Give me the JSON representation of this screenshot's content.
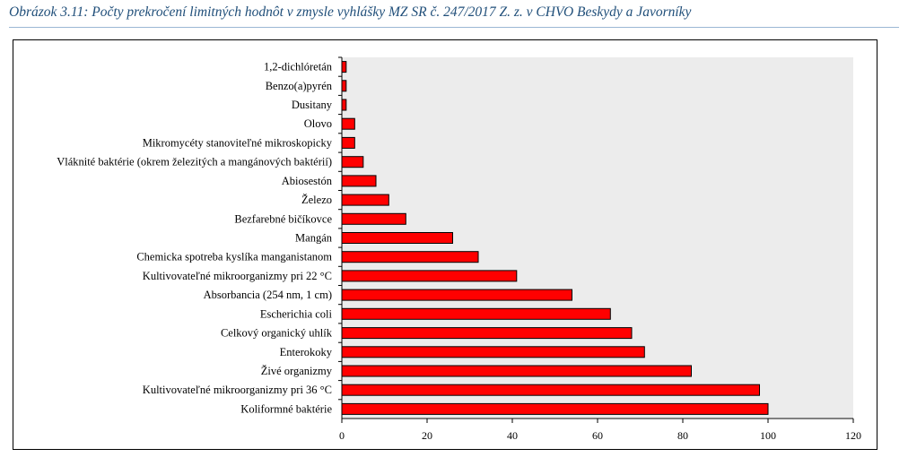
{
  "caption": "Obrázok 3.11: Počty prekročení limitných hodnôt v zmysle vyhlášky MZ SR č. 247/2017 Z. z. v CHVO Beskydy a Javorníky",
  "chart_data": {
    "type": "bar",
    "orientation": "horizontal",
    "categories": [
      "1,2-dichlóretán",
      "Benzo(a)pyrén",
      "Dusitany",
      "Olovo",
      "Mikromycéty stanoviteľné mikroskopicky",
      "Vláknité baktérie (okrem železitých a mangánových baktérií)",
      "Abiosestón",
      "Železo",
      "Bezfarebné bičíkovce",
      "Mangán",
      "Chemicka spotreba kyslíka manganistanom",
      "Kultivovateľné mikroorganizmy pri 22 °C",
      "Absorbancia (254 nm, 1 cm)",
      "Escherichia coli",
      "Celkový organický uhlík",
      "Enterokoky",
      "Živé organizmy",
      "Kultivovateľné mikroorganizmy pri 36 °C",
      "Koliformné baktérie"
    ],
    "values": [
      1,
      1,
      1,
      3,
      3,
      5,
      8,
      11,
      15,
      26,
      32,
      41,
      54,
      63,
      68,
      71,
      82,
      98,
      100
    ],
    "xlim": [
      0,
      120
    ],
    "xticks": [
      "0",
      "20",
      "40",
      "60",
      "80",
      "100",
      "120"
    ],
    "bar_color": "#ff0000",
    "plot_background": "#ececec",
    "grid": false,
    "legend": "none"
  }
}
